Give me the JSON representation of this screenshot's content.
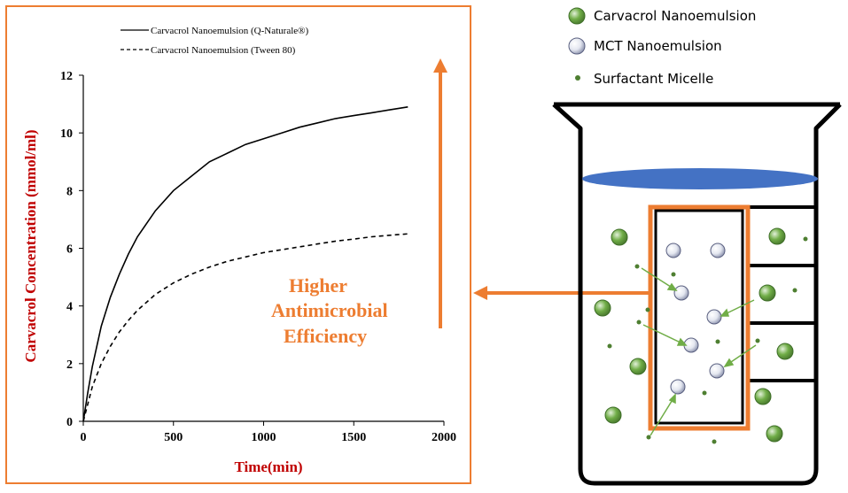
{
  "chart_data": {
    "type": "line",
    "title": "",
    "xlabel": "Time(min)",
    "ylabel": "Carvacrol Concentration (mmol/ml)",
    "xlim": [
      0,
      2000
    ],
    "ylim": [
      0,
      12
    ],
    "x_ticks": [
      "0",
      "500",
      "1000",
      "1500",
      "2000"
    ],
    "y_ticks": [
      "0",
      "2",
      "4",
      "6",
      "8",
      "10",
      "12"
    ],
    "grid": false,
    "legend_placement": "top",
    "series": [
      {
        "name": "Carvacrol Nanoemulsion (Q-Naturale®)",
        "style": "solid",
        "color": "#000000",
        "x": [
          0,
          25,
          50,
          100,
          150,
          200,
          250,
          300,
          400,
          500,
          600,
          700,
          800,
          900,
          1000,
          1100,
          1200,
          1300,
          1400,
          1500,
          1600,
          1700,
          1800
        ],
        "y": [
          0,
          1.0,
          1.9,
          3.3,
          4.3,
          5.1,
          5.8,
          6.4,
          7.3,
          8.0,
          8.5,
          9.0,
          9.3,
          9.6,
          9.8,
          10.0,
          10.2,
          10.35,
          10.5,
          10.6,
          10.7,
          10.8,
          10.9
        ]
      },
      {
        "name": "Carvacrol Nanoemulsion (Tween 80)",
        "style": "dashed",
        "color": "#000000",
        "x": [
          0,
          25,
          50,
          100,
          150,
          200,
          250,
          300,
          400,
          500,
          600,
          700,
          800,
          900,
          1000,
          1100,
          1200,
          1300,
          1400,
          1500,
          1600,
          1700,
          1800
        ],
        "y": [
          0,
          0.6,
          1.2,
          2.0,
          2.6,
          3.1,
          3.5,
          3.85,
          4.4,
          4.8,
          5.1,
          5.35,
          5.55,
          5.7,
          5.85,
          5.95,
          6.05,
          6.15,
          6.25,
          6.32,
          6.4,
          6.45,
          6.5
        ]
      }
    ]
  },
  "callout": {
    "lines": [
      "Higher",
      "Antimicrobial",
      "Efficiency"
    ]
  },
  "beaker_legend": {
    "items": [
      {
        "label": "Carvacrol Nanoemulsion",
        "icon": "green-sphere-icon"
      },
      {
        "label": "MCT Nanoemulsion",
        "icon": "white-sphere-icon"
      },
      {
        "label": "Surfactant Micelle",
        "icon": "small-green-dot-icon"
      }
    ]
  },
  "colors": {
    "accent": "#ED7D31",
    "axis_label": "#C00000",
    "water": "#4472C4",
    "green_particle": "#70AD47",
    "white_particle": "#D9DCE8"
  }
}
